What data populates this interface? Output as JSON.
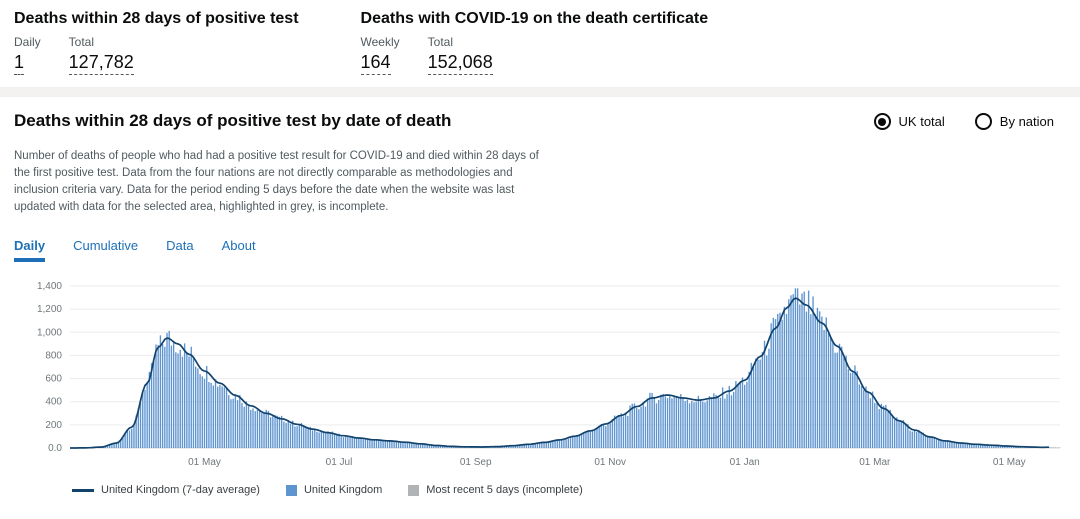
{
  "headline": {
    "left": {
      "title": "Deaths within 28 days of positive test",
      "metrics": [
        {
          "label": "Daily",
          "value": "1"
        },
        {
          "label": "Total",
          "value": "127,782"
        }
      ]
    },
    "right": {
      "title": "Deaths with COVID-19 on the death certificate",
      "metrics": [
        {
          "label": "Weekly",
          "value": "164"
        },
        {
          "label": "Total",
          "value": "152,068"
        }
      ]
    }
  },
  "card": {
    "title": "Deaths within 28 days of positive test by date of death",
    "radio_options": [
      {
        "label": "UK total",
        "selected": true
      },
      {
        "label": "By nation",
        "selected": false
      }
    ],
    "description": "Number of deaths of people who had had a positive test result for COVID-19 and died within 28 days of the first positive test. Data from the four nations are not directly comparable as methodologies and inclusion criteria vary. Data for the period ending 5 days before the date when the website was last updated with data for the selected area, highlighted in grey, is incomplete.",
    "tabs": [
      {
        "label": "Daily",
        "active": true
      },
      {
        "label": "Cumulative",
        "active": false
      },
      {
        "label": "Data",
        "active": false
      },
      {
        "label": "About",
        "active": false
      }
    ]
  },
  "chart_data": {
    "type": "bar",
    "title": "Deaths within 28 days of positive test by date of death",
    "xlabel": "",
    "ylabel": "",
    "ylim": [
      0,
      1400
    ],
    "grid": "horizontal",
    "ytick_labels": [
      "1,400",
      "1,200",
      "1,000",
      "800",
      "600",
      "400",
      "200",
      "0.0"
    ],
    "xticks": [
      {
        "label": "01 May",
        "date": "2020-05-01"
      },
      {
        "label": "01 Jul",
        "date": "2020-07-01"
      },
      {
        "label": "01 Sep",
        "date": "2020-09-01"
      },
      {
        "label": "01 Nov",
        "date": "2020-11-01"
      },
      {
        "label": "01 Jan",
        "date": "2021-01-01"
      },
      {
        "label": "01 Mar",
        "date": "2021-03-01"
      },
      {
        "label": "01 May",
        "date": "2021-05-01"
      }
    ],
    "bar_series_name": "United Kingdom",
    "bar_color": "#5e94cf",
    "incomplete": {
      "label": "Most recent 5 days (incomplete)",
      "days": 5,
      "color": "#b1b4b6"
    },
    "series": [
      {
        "name": "United Kingdom (7-day average)",
        "type": "line",
        "color": "#12436d",
        "points": [
          [
            "2020-03-01",
            0
          ],
          [
            "2020-03-08",
            1
          ],
          [
            "2020-03-15",
            8
          ],
          [
            "2020-03-22",
            42
          ],
          [
            "2020-03-29",
            180
          ],
          [
            "2020-04-05",
            560
          ],
          [
            "2020-04-10",
            870
          ],
          [
            "2020-04-14",
            950
          ],
          [
            "2020-04-19",
            900
          ],
          [
            "2020-04-24",
            810
          ],
          [
            "2020-05-01",
            665
          ],
          [
            "2020-05-08",
            560
          ],
          [
            "2020-05-15",
            455
          ],
          [
            "2020-05-22",
            365
          ],
          [
            "2020-05-29",
            300
          ],
          [
            "2020-06-05",
            252
          ],
          [
            "2020-06-12",
            205
          ],
          [
            "2020-06-19",
            163
          ],
          [
            "2020-06-26",
            132
          ],
          [
            "2020-07-03",
            106
          ],
          [
            "2020-07-10",
            86
          ],
          [
            "2020-07-17",
            71
          ],
          [
            "2020-07-24",
            61
          ],
          [
            "2020-07-31",
            50
          ],
          [
            "2020-08-07",
            36
          ],
          [
            "2020-08-14",
            22
          ],
          [
            "2020-08-21",
            14
          ],
          [
            "2020-08-28",
            10
          ],
          [
            "2020-09-04",
            9
          ],
          [
            "2020-09-11",
            12
          ],
          [
            "2020-09-18",
            20
          ],
          [
            "2020-09-25",
            32
          ],
          [
            "2020-10-02",
            48
          ],
          [
            "2020-10-09",
            70
          ],
          [
            "2020-10-16",
            102
          ],
          [
            "2020-10-23",
            148
          ],
          [
            "2020-10-30",
            208
          ],
          [
            "2020-11-06",
            282
          ],
          [
            "2020-11-13",
            358
          ],
          [
            "2020-11-20",
            432
          ],
          [
            "2020-11-27",
            458
          ],
          [
            "2020-12-04",
            432
          ],
          [
            "2020-12-11",
            414
          ],
          [
            "2020-12-18",
            432
          ],
          [
            "2020-12-25",
            492
          ],
          [
            "2021-01-01",
            585
          ],
          [
            "2021-01-08",
            790
          ],
          [
            "2021-01-15",
            1035
          ],
          [
            "2021-01-20",
            1210
          ],
          [
            "2021-01-24",
            1295
          ],
          [
            "2021-01-29",
            1235
          ],
          [
            "2021-02-05",
            1080
          ],
          [
            "2021-02-12",
            880
          ],
          [
            "2021-02-19",
            662
          ],
          [
            "2021-02-26",
            482
          ],
          [
            "2021-03-05",
            342
          ],
          [
            "2021-03-12",
            236
          ],
          [
            "2021-03-19",
            155
          ],
          [
            "2021-03-26",
            96
          ],
          [
            "2021-04-02",
            61
          ],
          [
            "2021-04-09",
            43
          ],
          [
            "2021-04-16",
            32
          ],
          [
            "2021-04-23",
            24
          ],
          [
            "2021-04-30",
            17
          ],
          [
            "2021-05-07",
            11
          ],
          [
            "2021-05-12",
            8
          ],
          [
            "2021-05-16",
            6
          ],
          [
            "2021-05-20",
            7
          ],
          [
            "2021-05-24",
            6
          ]
        ]
      }
    ]
  },
  "legend": [
    {
      "label": "United Kingdom (7-day average)"
    },
    {
      "label": "United Kingdom"
    },
    {
      "label": "Most recent 5 days (incomplete)"
    }
  ],
  "theme": {
    "accent_blue": "#1d70b8",
    "text": "#0b0c0c",
    "muted_text": "#505a5f",
    "divider_grey": "#f3f2f1"
  }
}
